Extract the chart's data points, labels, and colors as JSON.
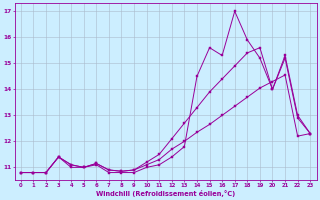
{
  "xlabel": "Windchill (Refroidissement éolien,°C)",
  "x": [
    0,
    1,
    2,
    3,
    4,
    5,
    6,
    7,
    8,
    9,
    10,
    11,
    12,
    13,
    14,
    15,
    16,
    17,
    18,
    19,
    20,
    21,
    22,
    23
  ],
  "line1": [
    10.8,
    10.8,
    10.8,
    11.4,
    11.0,
    11.0,
    11.1,
    10.8,
    10.8,
    10.8,
    11.0,
    11.1,
    11.4,
    11.8,
    14.5,
    15.6,
    15.3,
    17.0,
    15.9,
    15.2,
    14.0,
    15.2,
    12.9,
    12.3
  ],
  "line2": [
    10.8,
    10.8,
    10.8,
    11.4,
    11.1,
    11.0,
    11.15,
    10.9,
    10.85,
    10.9,
    11.1,
    11.3,
    11.7,
    12.0,
    12.35,
    12.65,
    13.0,
    13.35,
    13.7,
    14.05,
    14.3,
    14.55,
    12.2,
    12.3
  ],
  "line3": [
    10.8,
    10.8,
    10.8,
    11.4,
    11.1,
    11.0,
    11.15,
    10.9,
    10.85,
    10.9,
    11.2,
    11.5,
    12.1,
    12.7,
    13.3,
    13.9,
    14.4,
    14.9,
    15.4,
    15.6,
    14.0,
    15.3,
    13.0,
    12.3
  ],
  "color": "#990099",
  "bg_color": "#cceeff",
  "grid_color": "#aabbcc",
  "ylim": [
    10.5,
    17.3
  ],
  "xlim": [
    -0.5,
    23.5
  ],
  "yticks": [
    11,
    12,
    13,
    14,
    15,
    16,
    17
  ],
  "xticks": [
    0,
    1,
    2,
    3,
    4,
    5,
    6,
    7,
    8,
    9,
    10,
    11,
    12,
    13,
    14,
    15,
    16,
    17,
    18,
    19,
    20,
    21,
    22,
    23
  ]
}
